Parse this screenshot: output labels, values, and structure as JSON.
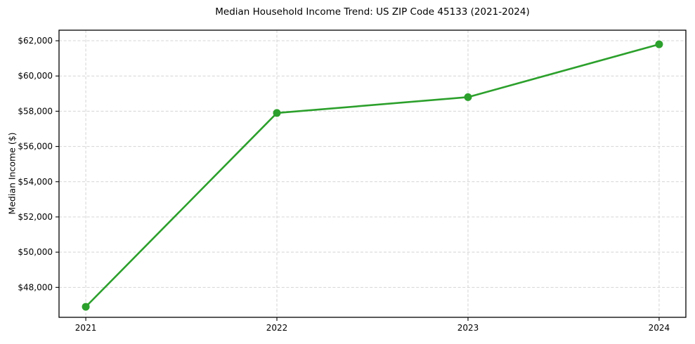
{
  "chart_data": {
    "type": "line",
    "title": "Median Household Income Trend: US ZIP Code 45133 (2021-2024)",
    "xlabel": "",
    "ylabel": "Median Income ($)",
    "x": [
      2021,
      2022,
      2023,
      2024
    ],
    "values": [
      46900,
      57900,
      58800,
      61800
    ],
    "xticks": [
      {
        "value": 2021,
        "label": "2021"
      },
      {
        "value": 2022,
        "label": "2022"
      },
      {
        "value": 2023,
        "label": "2023"
      },
      {
        "value": 2024,
        "label": "2024"
      }
    ],
    "yticks": [
      {
        "value": 48000,
        "label": "$48,000"
      },
      {
        "value": 50000,
        "label": "$50,000"
      },
      {
        "value": 52000,
        "label": "$52,000"
      },
      {
        "value": 54000,
        "label": "$54,000"
      },
      {
        "value": 56000,
        "label": "$56,000"
      },
      {
        "value": 58000,
        "label": "$58,000"
      },
      {
        "value": 60000,
        "label": "$60,000"
      },
      {
        "value": 62000,
        "label": "$62,000"
      }
    ],
    "xlim": [
      2020.86,
      2024.14
    ],
    "ylim": [
      46300,
      62600
    ],
    "grid": true,
    "grid_style": "dashed",
    "legend": "none",
    "marker": "circle",
    "colors": {
      "line": "#2ca02c",
      "marker": "#2ca02c",
      "grid": "#d4d4d4",
      "spine": "#000000",
      "text": "#000000",
      "background": "#ffffff"
    }
  }
}
